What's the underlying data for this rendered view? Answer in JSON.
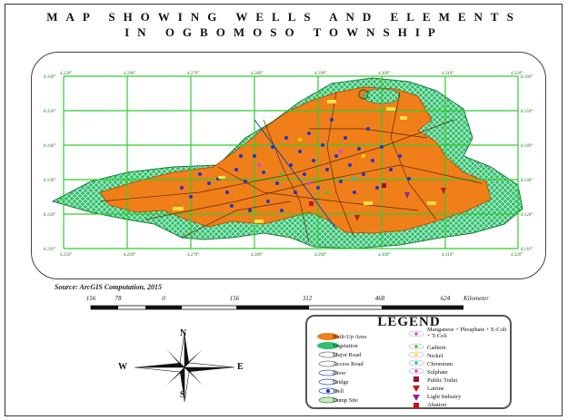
{
  "title": {
    "line1": "MAP SHOWING WELLS AND ELEMENTS",
    "line2": "IN OGBOMOSO TOWNSHIP"
  },
  "grid_labels": {
    "top": [
      "4.220°",
      "4.240°",
      "4.270°",
      "4.280°",
      "4.290°",
      "4.300°",
      "4.310°",
      "4.320°"
    ],
    "bottom": [
      "4.250°",
      "4.260°",
      "4.270°",
      "4.280°",
      "4.290°",
      "4.300°",
      "4.310°",
      "4.320°"
    ],
    "left": [
      "8.160°",
      "8.150°",
      "8.140°",
      "8.130°",
      "8.120°",
      "8.110°"
    ],
    "right": [
      "8.160°",
      "8.150°",
      "8.140°",
      "8.130°",
      "8.120°",
      "8.110°"
    ]
  },
  "source": "Source: ArcGIS Computation, 2015",
  "scale": {
    "labels": [
      "156",
      "78",
      "0",
      "156",
      "312",
      "468",
      "624"
    ],
    "unit": "Kilometer"
  },
  "compass": {
    "n": "N",
    "s": "S",
    "e": "E",
    "w": "W"
  },
  "legend": {
    "title": "LEGEND",
    "left": [
      {
        "label": "Built-Up Area",
        "icon": "orange-ellipse"
      },
      {
        "label": "Vegetation",
        "icon": "green-hatched-ellipse"
      },
      {
        "label": "Major Road",
        "icon": "line"
      },
      {
        "label": "Access Road",
        "icon": "line"
      },
      {
        "label": "River",
        "icon": "blue-line"
      },
      {
        "label": "Bridge",
        "icon": "bridge"
      },
      {
        "label": "Well",
        "icon": "blue-dot"
      },
      {
        "label": "Dump Site",
        "icon": "green-circle"
      }
    ],
    "right": [
      {
        "label": "Manganese + Phosphate + E-Coli + T-Coli",
        "icon": "pink-dot"
      },
      {
        "label": "Cadmin",
        "icon": "green-dot"
      },
      {
        "label": "Nickel",
        "icon": "yellow-dot"
      },
      {
        "label": "Chromium",
        "icon": "cyan-dot"
      },
      {
        "label": "Sulphate",
        "icon": "pink-dot"
      },
      {
        "label": "Public Toilet",
        "icon": "maroon-square"
      },
      {
        "label": "Latrine",
        "icon": "red-triangle"
      },
      {
        "label": "Light Industry",
        "icon": "purple-triangle"
      },
      {
        "label": "Abattoir",
        "icon": "red-square"
      }
    ]
  },
  "colors": {
    "built_up": "#f07f1a",
    "vegetation": "#2fbf6f",
    "grid": "#33cc33",
    "well": "#2233cc"
  }
}
